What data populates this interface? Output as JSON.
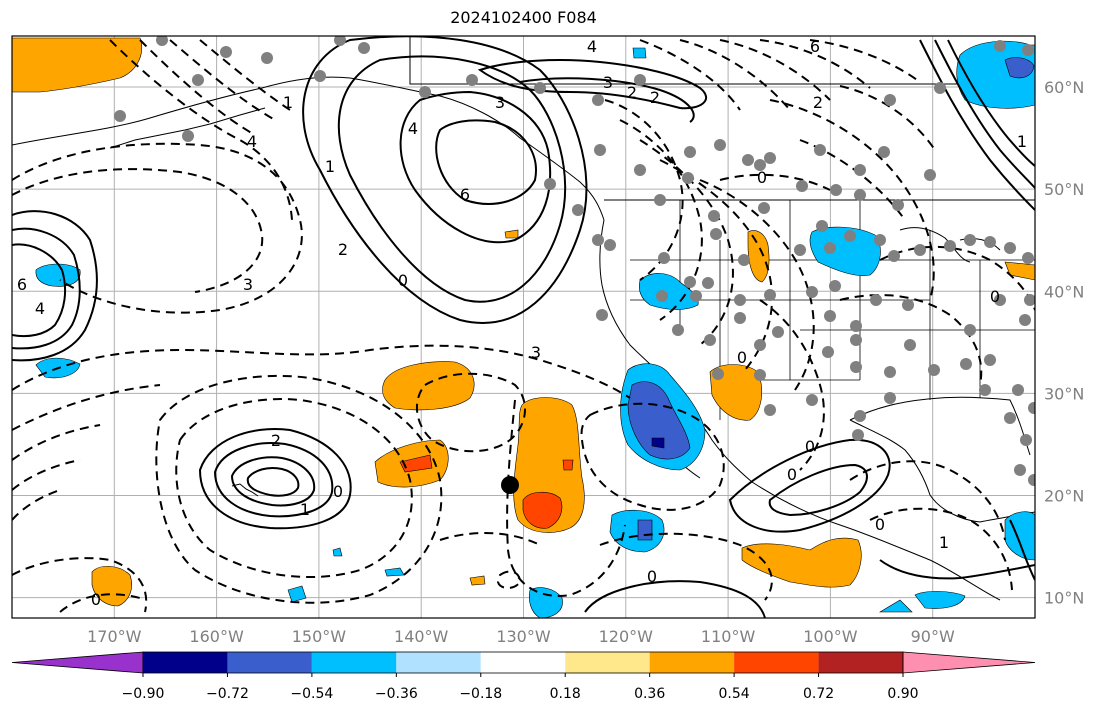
{
  "title": "2024102400 F084",
  "map": {
    "lon_range": [
      -180,
      -80
    ],
    "lat_range": [
      8,
      65
    ],
    "lon_labels": [
      "170°W",
      "160°W",
      "150°W",
      "140°W",
      "130°W",
      "120°W",
      "110°W",
      "100°W",
      "90°W"
    ],
    "lat_labels": [
      "60°N",
      "50°N",
      "40°N",
      "30°N",
      "20°N",
      "10°N"
    ],
    "grid": true,
    "contour_labels": [
      "6",
      "4",
      "3",
      "3",
      "2",
      "2",
      "1",
      "4",
      "6",
      "1",
      "2",
      "3",
      "0",
      "4",
      "2",
      "0",
      "1",
      "0",
      "3",
      "0",
      "0",
      "6",
      "4",
      "0",
      "0",
      "2",
      "1",
      "0",
      "0",
      "1",
      "0"
    ],
    "storm_marker": "black-dot"
  },
  "colorbar": {
    "colors": [
      "#9932cc",
      "#00008b",
      "#3a5fcd",
      "#00bfff",
      "#b0e2ff",
      "#ffffff",
      "#ffe78c",
      "#ffa500",
      "#ff4500",
      "#b22222",
      "#ff8fb1"
    ],
    "ticks": [
      "−0.90",
      "−0.72",
      "−0.54",
      "−0.36",
      "−0.18",
      "0.18",
      "0.36",
      "0.54",
      "0.72",
      "0.90"
    ],
    "extend": "both"
  }
}
